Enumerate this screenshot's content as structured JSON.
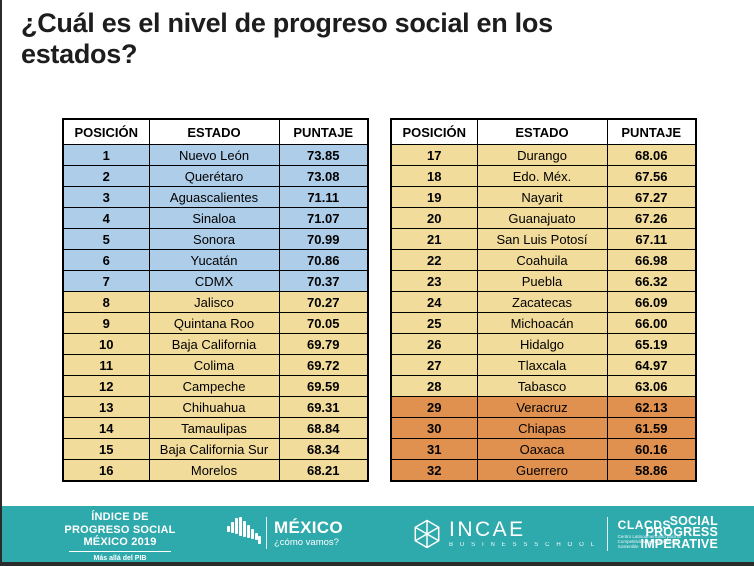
{
  "title": "¿Cuál es el nivel de progreso social en los estados?",
  "colors": {
    "tier_high_blue": "#AECDE9",
    "tier_mid_yellow": "#F2DC9B",
    "tier_low_orange": "#E0914F",
    "footer_teal": "#2EA9AC",
    "border_black": "#000000"
  },
  "tables": [
    {
      "columns": [
        "POSICIÓN",
        "ESTADO",
        "PUNTAJE"
      ],
      "rows": [
        {
          "pos": "1",
          "estado": "Nuevo León",
          "puntaje": "73.85",
          "tier": "blue"
        },
        {
          "pos": "2",
          "estado": "Querétaro",
          "puntaje": "73.08",
          "tier": "blue"
        },
        {
          "pos": "3",
          "estado": "Aguascalientes",
          "puntaje": "71.11",
          "tier": "blue"
        },
        {
          "pos": "4",
          "estado": "Sinaloa",
          "puntaje": "71.07",
          "tier": "blue"
        },
        {
          "pos": "5",
          "estado": "Sonora",
          "puntaje": "70.99",
          "tier": "blue"
        },
        {
          "pos": "6",
          "estado": "Yucatán",
          "puntaje": "70.86",
          "tier": "blue"
        },
        {
          "pos": "7",
          "estado": "CDMX",
          "puntaje": "70.37",
          "tier": "blue"
        },
        {
          "pos": "8",
          "estado": "Jalisco",
          "puntaje": "70.27",
          "tier": "yellow"
        },
        {
          "pos": "9",
          "estado": "Quintana Roo",
          "puntaje": "70.05",
          "tier": "yellow"
        },
        {
          "pos": "10",
          "estado": "Baja California",
          "puntaje": "69.79",
          "tier": "yellow"
        },
        {
          "pos": "11",
          "estado": "Colima",
          "puntaje": "69.72",
          "tier": "yellow"
        },
        {
          "pos": "12",
          "estado": "Campeche",
          "puntaje": "69.59",
          "tier": "yellow"
        },
        {
          "pos": "13",
          "estado": "Chihuahua",
          "puntaje": "69.31",
          "tier": "yellow"
        },
        {
          "pos": "14",
          "estado": "Tamaulipas",
          "puntaje": "68.84",
          "tier": "yellow"
        },
        {
          "pos": "15",
          "estado": "Baja California Sur",
          "puntaje": "68.34",
          "tier": "yellow"
        },
        {
          "pos": "16",
          "estado": "Morelos",
          "puntaje": "68.21",
          "tier": "yellow"
        }
      ]
    },
    {
      "columns": [
        "POSICIÓN",
        "ESTADO",
        "PUNTAJE"
      ],
      "rows": [
        {
          "pos": "17",
          "estado": "Durango",
          "puntaje": "68.06",
          "tier": "yellow"
        },
        {
          "pos": "18",
          "estado": "Edo. Méx.",
          "puntaje": "67.56",
          "tier": "yellow"
        },
        {
          "pos": "19",
          "estado": "Nayarit",
          "puntaje": "67.27",
          "tier": "yellow"
        },
        {
          "pos": "20",
          "estado": "Guanajuato",
          "puntaje": "67.26",
          "tier": "yellow"
        },
        {
          "pos": "21",
          "estado": "San Luis Potosí",
          "puntaje": "67.11",
          "tier": "yellow"
        },
        {
          "pos": "22",
          "estado": "Coahuila",
          "puntaje": "66.98",
          "tier": "yellow"
        },
        {
          "pos": "23",
          "estado": "Puebla",
          "puntaje": "66.32",
          "tier": "yellow"
        },
        {
          "pos": "24",
          "estado": "Zacatecas",
          "puntaje": "66.09",
          "tier": "yellow"
        },
        {
          "pos": "25",
          "estado": "Michoacán",
          "puntaje": "66.00",
          "tier": "yellow"
        },
        {
          "pos": "26",
          "estado": "Hidalgo",
          "puntaje": "65.19",
          "tier": "yellow"
        },
        {
          "pos": "27",
          "estado": "Tlaxcala",
          "puntaje": "64.97",
          "tier": "yellow"
        },
        {
          "pos": "28",
          "estado": "Tabasco",
          "puntaje": "63.06",
          "tier": "yellow"
        },
        {
          "pos": "29",
          "estado": "Veracruz",
          "puntaje": "62.13",
          "tier": "orange"
        },
        {
          "pos": "30",
          "estado": "Chiapas",
          "puntaje": "61.59",
          "tier": "orange"
        },
        {
          "pos": "31",
          "estado": "Oaxaca",
          "puntaje": "60.16",
          "tier": "orange"
        },
        {
          "pos": "32",
          "estado": "Guerrero",
          "puntaje": "58.86",
          "tier": "orange"
        }
      ]
    }
  ],
  "footer": {
    "ips": {
      "line1": "ÍNDICE DE",
      "line2": "PROGRESO SOCIAL",
      "line3": "MÉXICO 2019",
      "tagline": "Más allá del PIB"
    },
    "mcv": {
      "name": "MÉXICO",
      "tagline": "¿cómo vamos?"
    },
    "incae": {
      "name": "INCAE",
      "sub": "B U S I N E S S   S C H O O L"
    },
    "clacds": {
      "name": "CLACDS",
      "sub": "Centro Latinoamericano para la Competitividad y el Desarrollo Sostenible"
    },
    "spi": {
      "line1": "SOCIAL",
      "line2": "PROGRESS",
      "line3": "IMPERATIVE"
    }
  }
}
